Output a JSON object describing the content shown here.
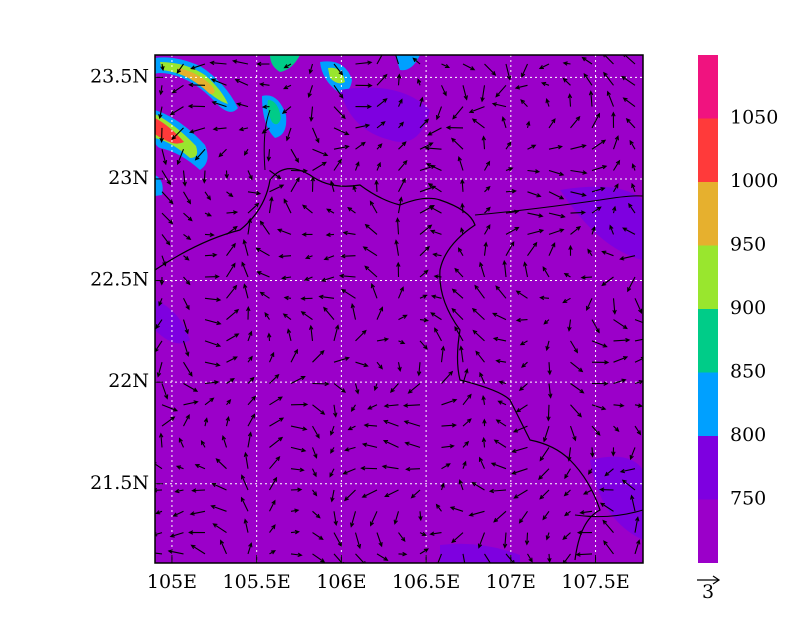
{
  "map": {
    "xlim": [
      104.9,
      107.78
    ],
    "ylim": [
      21.11,
      23.61
    ],
    "xticks": [
      {
        "value": 105,
        "label": "105E"
      },
      {
        "value": 105.5,
        "label": "105.5E"
      },
      {
        "value": 106,
        "label": "106E"
      },
      {
        "value": 106.5,
        "label": "106.5E"
      },
      {
        "value": 107,
        "label": "107E"
      },
      {
        "value": 107.5,
        "label": "107.5E"
      }
    ],
    "yticks": [
      {
        "value": 21.5,
        "label": "21.5N"
      },
      {
        "value": 22,
        "label": "22N"
      },
      {
        "value": 22.5,
        "label": "22.5N"
      },
      {
        "value": 23,
        "label": "23N"
      },
      {
        "value": 23.5,
        "label": "23.5N"
      }
    ],
    "grid": true,
    "colorbar": {
      "levels": [
        750,
        800,
        850,
        900,
        950,
        1000,
        1050
      ],
      "colors": [
        "#9b00c9",
        "#7e00e0",
        "#00a0ff",
        "#00cc88",
        "#99e62e",
        "#e6b02e",
        "#ff3a3a",
        "#f0137f"
      ]
    },
    "vector_reference": {
      "label": "3"
    }
  }
}
